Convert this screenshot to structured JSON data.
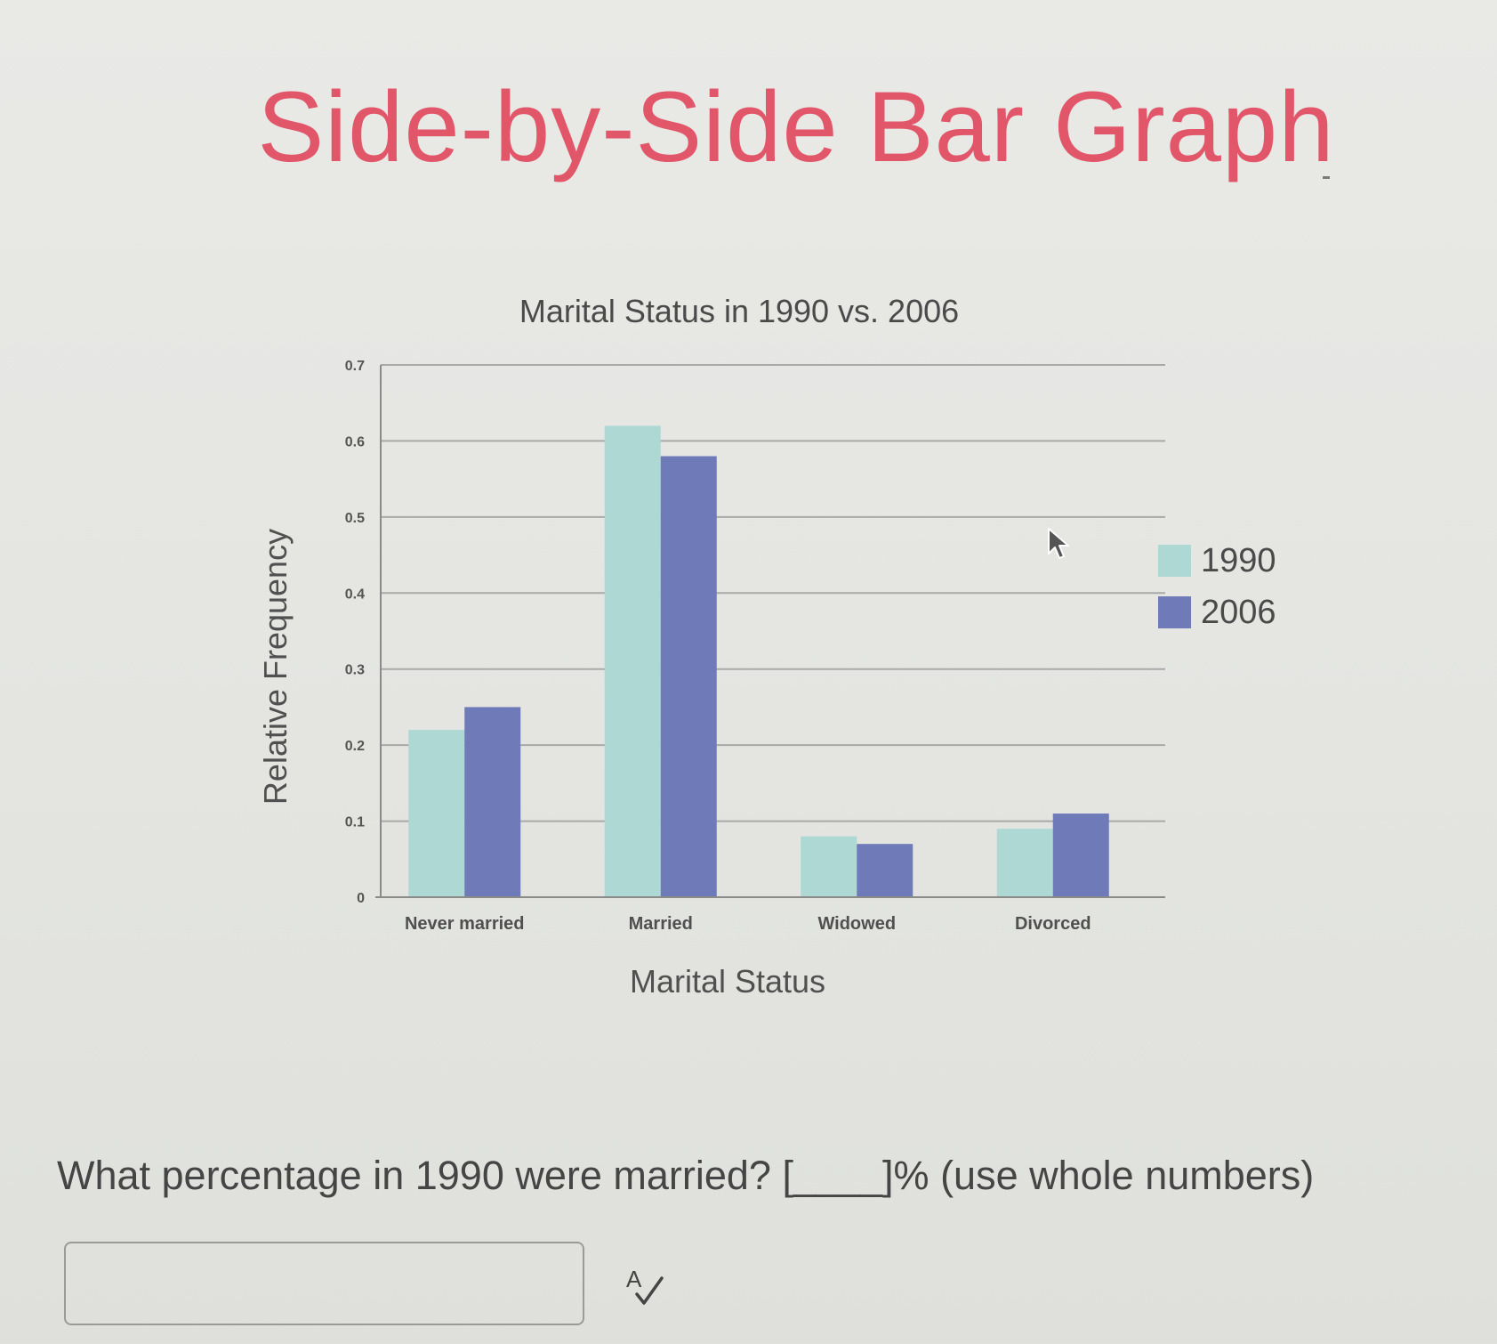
{
  "slide": {
    "title": "Side-by-Side Bar Graph",
    "title_color": "#e2566a"
  },
  "chart_data": {
    "type": "bar",
    "title": "Marital Status in 1990 vs. 2006",
    "xlabel": "Marital Status",
    "ylabel": "Relative Frequency",
    "categories": [
      "Never married",
      "Married",
      "Widowed",
      "Divorced"
    ],
    "series": [
      {
        "name": "1990",
        "values": [
          0.22,
          0.62,
          0.08,
          0.09
        ],
        "color": "#aed8d4"
      },
      {
        "name": "2006",
        "values": [
          0.25,
          0.58,
          0.07,
          0.11
        ],
        "color": "#6f7ab8"
      }
    ],
    "ylim": [
      0,
      0.7
    ],
    "yticks": [
      "0",
      "0.1",
      "0.2",
      "0.3",
      "0.4",
      "0.5",
      "0.6",
      "0.7"
    ],
    "grid": true,
    "legend_position": "right"
  },
  "question": {
    "text": "What percentage in 1990 were married? [____]% (use whole numbers)"
  },
  "answer": {
    "value": "",
    "placeholder": ""
  },
  "icons": {
    "spellcheck": "spellcheck-icon",
    "cursor": "mouse-pointer-icon"
  }
}
